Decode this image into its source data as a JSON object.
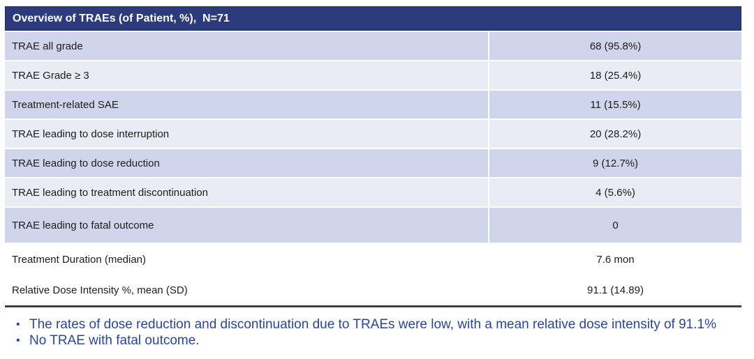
{
  "table": {
    "title": "Overview of TRAEs (of Patient, %),  N=71",
    "rows": [
      {
        "label": "TRAE all grade",
        "value": "68 (95.8%)"
      },
      {
        "label": "TRAE Grade ≥ 3",
        "value": "18 (25.4%)"
      },
      {
        "label": "Treatment-related SAE",
        "value": "11 (15.5%)"
      },
      {
        "label": "TRAE leading to dose interruption",
        "value": "20 (28.2%)"
      },
      {
        "label": "TRAE leading to dose reduction",
        "value": "9 (12.7%)"
      },
      {
        "label": "TRAE leading to treatment discontinuation",
        "value": "4 (5.6%)"
      },
      {
        "label": "TRAE leading to fatal outcome",
        "value": "0"
      },
      {
        "label": "Treatment Duration (median)",
        "value": "7.6 mon"
      },
      {
        "label": "Relative Dose Intensity %, mean (SD)",
        "value": "91.1 (14.89)"
      }
    ]
  },
  "notes": {
    "bullet_glyph": "•",
    "items": [
      "The rates of dose reduction and discontinuation due to TRAEs were low, with a mean relative dose intensity of 91.1%",
      "No TRAE with fatal outcome."
    ]
  },
  "colors": {
    "header-bg": "#2b3b7d",
    "band-dark": "#cfd5ea",
    "band-light": "#e9ecf5",
    "rule": "#3e3e3e",
    "note-text": "#2b4699"
  }
}
